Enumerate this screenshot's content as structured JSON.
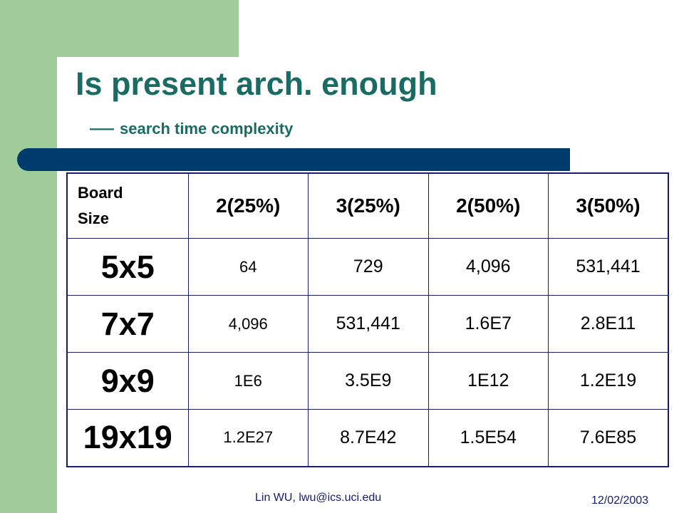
{
  "slide": {
    "title": "Is present arch. enough",
    "subtitle_dash": "—",
    "subtitle": "search time complexity"
  },
  "table": {
    "corner_header": [
      "Board",
      "Size"
    ],
    "columns": [
      "2(25%)",
      "3(25%)",
      "2(50%)",
      "3(50%)"
    ],
    "rows": [
      {
        "label": "5x5",
        "values": [
          "64",
          "729",
          "4,096",
          "531,441"
        ]
      },
      {
        "label": "7x7",
        "values": [
          "4,096",
          "531,441",
          "1.6E7",
          "2.8E11"
        ]
      },
      {
        "label": "9x9",
        "values": [
          "1E6",
          "3.5E9",
          "1E12",
          "1.2E19"
        ]
      },
      {
        "label": "19x19",
        "values": [
          "1.2E27",
          "8.7E42",
          "1.5E54",
          "7.6E85"
        ]
      }
    ]
  },
  "footer": {
    "author": "Lin WU, lwu@ics.uci.edu",
    "date": "12/02/2003"
  },
  "colors": {
    "title": "#1a6b63",
    "accent_green": "#9fcc98",
    "bar_blue": "#003b6e",
    "table_border": "#1a1a6e"
  }
}
